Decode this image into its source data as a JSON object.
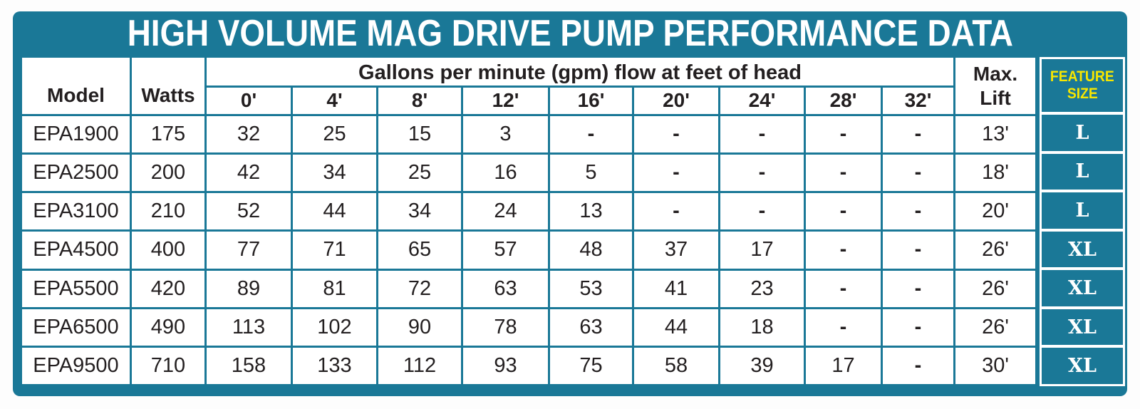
{
  "title": "HIGH VOLUME MAG DRIVE PUMP PERFORMANCE DATA",
  "colors": {
    "teal": "#1a7897",
    "yellow": "#f7e600",
    "text": "#231f20",
    "white": "#ffffff"
  },
  "table": {
    "col_model": "Model",
    "col_watts": "Watts",
    "span_header": "Gallons per minute (gpm) flow at feet of head",
    "flow_heads": [
      "0'",
      "4'",
      "8'",
      "12'",
      "16'",
      "20'",
      "24'",
      "28'",
      "32'"
    ],
    "max_lift_line1": "Max.",
    "max_lift_line2": "Lift",
    "feature_header_line1": "FEATURE",
    "feature_header_line2": "SIZE",
    "rows": [
      {
        "model": "EPA1900",
        "watts": "175",
        "flow": [
          "32",
          "25",
          "15",
          "3",
          "-",
          "-",
          "-",
          "-",
          "-"
        ],
        "max_lift": "13'",
        "size": "L"
      },
      {
        "model": "EPA2500",
        "watts": "200",
        "flow": [
          "42",
          "34",
          "25",
          "16",
          "5",
          "-",
          "-",
          "-",
          "-"
        ],
        "max_lift": "18'",
        "size": "L"
      },
      {
        "model": "EPA3100",
        "watts": "210",
        "flow": [
          "52",
          "44",
          "34",
          "24",
          "13",
          "-",
          "-",
          "-",
          "-"
        ],
        "max_lift": "20'",
        "size": "L"
      },
      {
        "model": "EPA4500",
        "watts": "400",
        "flow": [
          "77",
          "71",
          "65",
          "57",
          "48",
          "37",
          "17",
          "-",
          "-"
        ],
        "max_lift": "26'",
        "size": "XL"
      },
      {
        "model": "EPA5500",
        "watts": "420",
        "flow": [
          "89",
          "81",
          "72",
          "63",
          "53",
          "41",
          "23",
          "-",
          "-"
        ],
        "max_lift": "26'",
        "size": "XL"
      },
      {
        "model": "EPA6500",
        "watts": "490",
        "flow": [
          "113",
          "102",
          "90",
          "78",
          "63",
          "44",
          "18",
          "-",
          "-"
        ],
        "max_lift": "26'",
        "size": "XL"
      },
      {
        "model": "EPA9500",
        "watts": "710",
        "flow": [
          "158",
          "133",
          "112",
          "93",
          "75",
          "58",
          "39",
          "17",
          "-"
        ],
        "max_lift": "30'",
        "size": "XL"
      }
    ]
  }
}
